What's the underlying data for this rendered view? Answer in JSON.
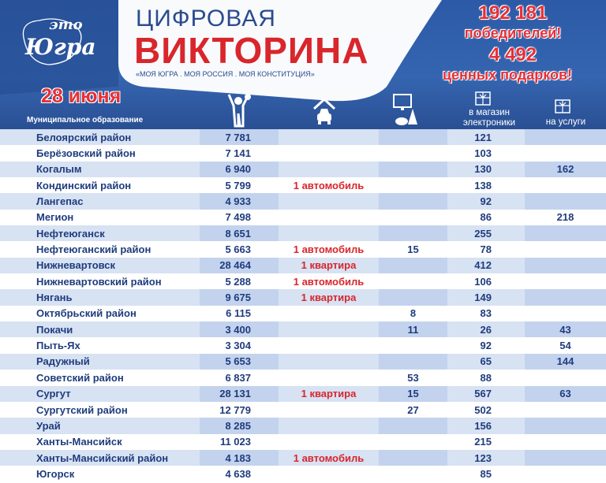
{
  "header": {
    "logo_text_top": "это",
    "logo_text_main": "Югра",
    "title_line1": "ЦИФРОВАЯ",
    "title_line2": "ВИКТОРИНА",
    "slogan": "«МОЯ ЮГРА . МОЯ РОССИЯ . МОЯ КОНСТИТУЦИЯ»",
    "winners_count": "192 181",
    "winners_label": "победителей!",
    "gifts_count": "4 492",
    "gifts_label": "ценных подарков!",
    "date": "28 июня"
  },
  "columns": {
    "municipality": "Муниципальное образование",
    "winners_icon": "winner-person-icon",
    "car_icon": "car-garage-icon",
    "appliance_icon": "appliances-icon",
    "electronics_line1": "в магазин",
    "electronics_line2": "электроники",
    "services": "на услуги"
  },
  "colors": {
    "accent_red": "#d9262b",
    "header_blue": "#2c5aa6",
    "text_blue": "#1f3c7c"
  },
  "rows": [
    [
      "Белоярский район",
      "7 781",
      "",
      "",
      "121",
      ""
    ],
    [
      "Берёзовский район",
      "7 141",
      "",
      "",
      "103",
      ""
    ],
    [
      "Когалым",
      "6 940",
      "",
      "",
      "130",
      "162"
    ],
    [
      "Кондинский район",
      "5 799",
      "1 автомобиль",
      "",
      "138",
      ""
    ],
    [
      "Лангепас",
      "4 933",
      "",
      "",
      "92",
      ""
    ],
    [
      "Мегион",
      "7 498",
      "",
      "",
      "86",
      "218"
    ],
    [
      "Нефтеюганск",
      "8 651",
      "",
      "",
      "255",
      ""
    ],
    [
      "Нефтеюганский район",
      "5 663",
      "1 автомобиль",
      "15",
      "78",
      ""
    ],
    [
      "Нижневартовск",
      "28 464",
      "1 квартира",
      "",
      "412",
      ""
    ],
    [
      "Нижневартовский район",
      "5 288",
      "1 автомобиль",
      "",
      "106",
      ""
    ],
    [
      "Нягань",
      "9 675",
      "1 квартира",
      "",
      "149",
      ""
    ],
    [
      "Октябрьский район",
      "6 115",
      "",
      "8",
      "83",
      ""
    ],
    [
      "Покачи",
      "3 400",
      "",
      "11",
      "26",
      "43"
    ],
    [
      "Пыть-Ях",
      "3 304",
      "",
      "",
      "92",
      "54"
    ],
    [
      "Радужный",
      "5 653",
      "",
      "",
      "65",
      "144"
    ],
    [
      "Советский район",
      "6 837",
      "",
      "53",
      "88",
      ""
    ],
    [
      "Сургут",
      "28 131",
      "1 квартира",
      "15",
      "567",
      "63"
    ],
    [
      "Сургутский район",
      "12 779",
      "",
      "27",
      "502",
      ""
    ],
    [
      "Урай",
      "8 285",
      "",
      "",
      "156",
      ""
    ],
    [
      "Ханты-Мансийск",
      "11 023",
      "",
      "",
      "215",
      ""
    ],
    [
      "Ханты-Мансийский район",
      "4 183",
      "1 автомобиль",
      "",
      "123",
      ""
    ],
    [
      "Югорск",
      "4 638",
      "",
      "",
      "85",
      ""
    ]
  ]
}
